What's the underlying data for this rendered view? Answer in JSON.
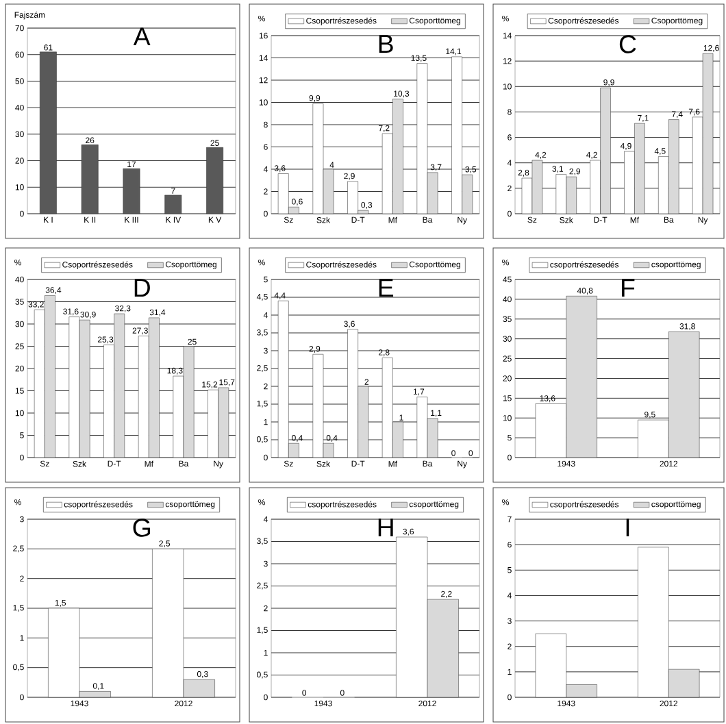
{
  "chart_data": [
    {
      "type": "bar",
      "title": "A",
      "ylabel": "Fajszám",
      "categories": [
        "K I",
        "K II",
        "K III",
        "K IV",
        "K V"
      ],
      "values": [
        61,
        26,
        17,
        7,
        25
      ],
      "color": "#595959",
      "value_labels": [
        "61",
        "26",
        "17",
        "7",
        "25"
      ],
      "ylim": [
        0,
        70
      ],
      "yticks": [
        0,
        10,
        20,
        30,
        40,
        50,
        60,
        70
      ],
      "grid": "y"
    },
    {
      "type": "bar",
      "title": "B",
      "ylabel": "%",
      "categories": [
        "Sz",
        "Szk",
        "D-T",
        "Mf",
        "Ba",
        "Ny"
      ],
      "series": [
        {
          "name": "Csoportrészesedés",
          "color": "#ffffff",
          "values": [
            3.6,
            9.9,
            2.9,
            7.2,
            13.5,
            14.1
          ],
          "value_labels": [
            "3,6",
            "9,9",
            "2,9",
            "7,2",
            "13,5",
            "14,1"
          ]
        },
        {
          "name": "Csoporttömeg",
          "color": "#d9d9d9",
          "values": [
            0.6,
            4,
            0.3,
            10.3,
            3.7,
            3.5
          ],
          "value_labels": [
            "0,6",
            "4",
            "0,3",
            "10,3",
            "3,7",
            "3,5"
          ]
        }
      ],
      "ylim": [
        0,
        16
      ],
      "yticks": [
        0,
        2,
        4,
        6,
        8,
        10,
        12,
        14,
        16
      ],
      "grid": "y",
      "legend": "top"
    },
    {
      "type": "bar",
      "title": "C",
      "ylabel": "%",
      "categories": [
        "Sz",
        "Szk",
        "D-T",
        "Mf",
        "Ba",
        "Ny"
      ],
      "series": [
        {
          "name": "Csoportrészesedés",
          "color": "#ffffff",
          "values": [
            2.8,
            3.1,
            4.2,
            4.9,
            4.5,
            7.6
          ],
          "value_labels": [
            "2,8",
            "3,1",
            "4,2",
            "4,9",
            "4,5",
            "7,6"
          ]
        },
        {
          "name": "Csoporttömeg",
          "color": "#d9d9d9",
          "values": [
            4.2,
            2.9,
            9.9,
            7.1,
            7.4,
            12.6
          ],
          "value_labels": [
            "4,2",
            "2,9",
            "9,9",
            "7,1",
            "7,4",
            "12,6"
          ]
        }
      ],
      "ylim": [
        0,
        14
      ],
      "yticks": [
        0,
        2,
        4,
        6,
        8,
        10,
        12,
        14
      ],
      "grid": "y",
      "legend": "top"
    },
    {
      "type": "bar",
      "title": "D",
      "ylabel": "%",
      "categories": [
        "Sz",
        "Szk",
        "D-T",
        "Mf",
        "Ba",
        "Ny"
      ],
      "series": [
        {
          "name": "Csoportrészesedés",
          "color": "#ffffff",
          "values": [
            33.2,
            31.6,
            25.3,
            27.3,
            18.3,
            15.2
          ],
          "value_labels": [
            "33,2",
            "31,6",
            "25,3",
            "27,3",
            "18,3",
            "15,2"
          ]
        },
        {
          "name": "Csoporttömeg",
          "color": "#d9d9d9",
          "values": [
            36.4,
            30.9,
            32.3,
            31.4,
            25,
            15.7
          ],
          "value_labels": [
            "36,4",
            "30,9",
            "32,3",
            "31,4",
            "25",
            "15,7"
          ]
        }
      ],
      "ylim": [
        0,
        40
      ],
      "yticks": [
        0,
        5,
        10,
        15,
        20,
        25,
        30,
        35,
        40
      ],
      "grid": "y",
      "legend": "top"
    },
    {
      "type": "bar",
      "title": "E",
      "ylabel": "%",
      "categories": [
        "Sz",
        "Szk",
        "D-T",
        "Mf",
        "Ba",
        "Ny"
      ],
      "series": [
        {
          "name": "Csoportrészesedés",
          "color": "#ffffff",
          "values": [
            4.4,
            2.9,
            3.6,
            2.8,
            1.7,
            0
          ],
          "value_labels": [
            "4,4",
            "2,9",
            "3,6",
            "2,8",
            "1,7",
            "0"
          ]
        },
        {
          "name": "Csoporttömeg",
          "color": "#d9d9d9",
          "values": [
            0.4,
            0.4,
            2,
            1,
            1.1,
            0
          ],
          "value_labels": [
            "0,4",
            "0,4",
            "2",
            "1",
            "1,1",
            "0"
          ]
        }
      ],
      "ylim": [
        0,
        5
      ],
      "yticks": [
        0,
        {
          "value": 0.5,
          "label": "0,5"
        },
        1,
        {
          "value": 1.5,
          "label": "1,5"
        },
        2,
        {
          "value": 2.5,
          "label": "2,5"
        },
        3,
        {
          "value": 3.5,
          "label": "3,5"
        },
        4,
        {
          "value": 4.5,
          "label": "4,5"
        },
        5
      ],
      "grid": "y",
      "legend": "top"
    },
    {
      "type": "bar",
      "title": "F",
      "ylabel": "%",
      "categories": [
        "1943",
        "2012"
      ],
      "series": [
        {
          "name": "csoportrészesedés",
          "color": "#ffffff",
          "values": [
            13.6,
            9.5
          ],
          "value_labels": [
            "13,6",
            "9,5"
          ]
        },
        {
          "name": "csoporttömeg",
          "color": "#d9d9d9",
          "values": [
            40.8,
            31.8
          ],
          "value_labels": [
            "40,8",
            "31,8"
          ]
        }
      ],
      "ylim": [
        0,
        45
      ],
      "yticks": [
        0,
        5,
        10,
        15,
        20,
        25,
        30,
        35,
        40,
        45
      ],
      "grid": "y",
      "legend": "top"
    },
    {
      "type": "bar",
      "title": "G",
      "ylabel": "%",
      "categories": [
        "1943",
        "2012"
      ],
      "series": [
        {
          "name": "csoportrészesedés",
          "color": "#ffffff",
          "values": [
            1.5,
            2.5
          ],
          "value_labels": [
            "1,5",
            "2,5"
          ]
        },
        {
          "name": "csoporttömeg",
          "color": "#d9d9d9",
          "values": [
            0.1,
            0.3
          ],
          "value_labels": [
            "0,1",
            "0,3"
          ]
        }
      ],
      "ylim": [
        0,
        3
      ],
      "yticks": [
        0,
        {
          "value": 0.5,
          "label": "0,5"
        },
        1,
        {
          "value": 1.5,
          "label": "1,5"
        },
        2,
        {
          "value": 2.5,
          "label": "2,5"
        },
        3
      ],
      "grid": "y",
      "legend": "top"
    },
    {
      "type": "bar",
      "title": "H",
      "ylabel": "%",
      "categories": [
        "1943",
        "2012"
      ],
      "series": [
        {
          "name": "csoportrészesedés",
          "color": "#ffffff",
          "values": [
            0,
            3.6
          ],
          "value_labels": [
            "0",
            "3,6"
          ]
        },
        {
          "name": "csoporttömeg",
          "color": "#d9d9d9",
          "values": [
            0,
            2.2
          ],
          "value_labels": [
            "0",
            "2,2"
          ]
        }
      ],
      "ylim": [
        0,
        4
      ],
      "yticks": [
        0,
        {
          "value": 0.5,
          "label": "0,5"
        },
        1,
        {
          "value": 1.5,
          "label": "1,5"
        },
        2,
        {
          "value": 2.5,
          "label": "2,5"
        },
        3,
        {
          "value": 3.5,
          "label": "3,5"
        },
        4
      ],
      "grid": "y",
      "legend": "top"
    },
    {
      "type": "bar",
      "title": "I",
      "ylabel": "%",
      "categories": [
        "1943",
        "2012"
      ],
      "series": [
        {
          "name": "csoportrészesedés",
          "color": "#ffffff",
          "values": [
            2.5,
            5.9
          ]
        },
        {
          "name": "csoporttömeg",
          "color": "#d9d9d9",
          "values": [
            0.5,
            1.1
          ]
        }
      ],
      "ylim": [
        0,
        7
      ],
      "yticks": [
        0,
        1,
        2,
        3,
        4,
        5,
        6,
        7
      ],
      "grid": "y",
      "legend": "top"
    }
  ]
}
